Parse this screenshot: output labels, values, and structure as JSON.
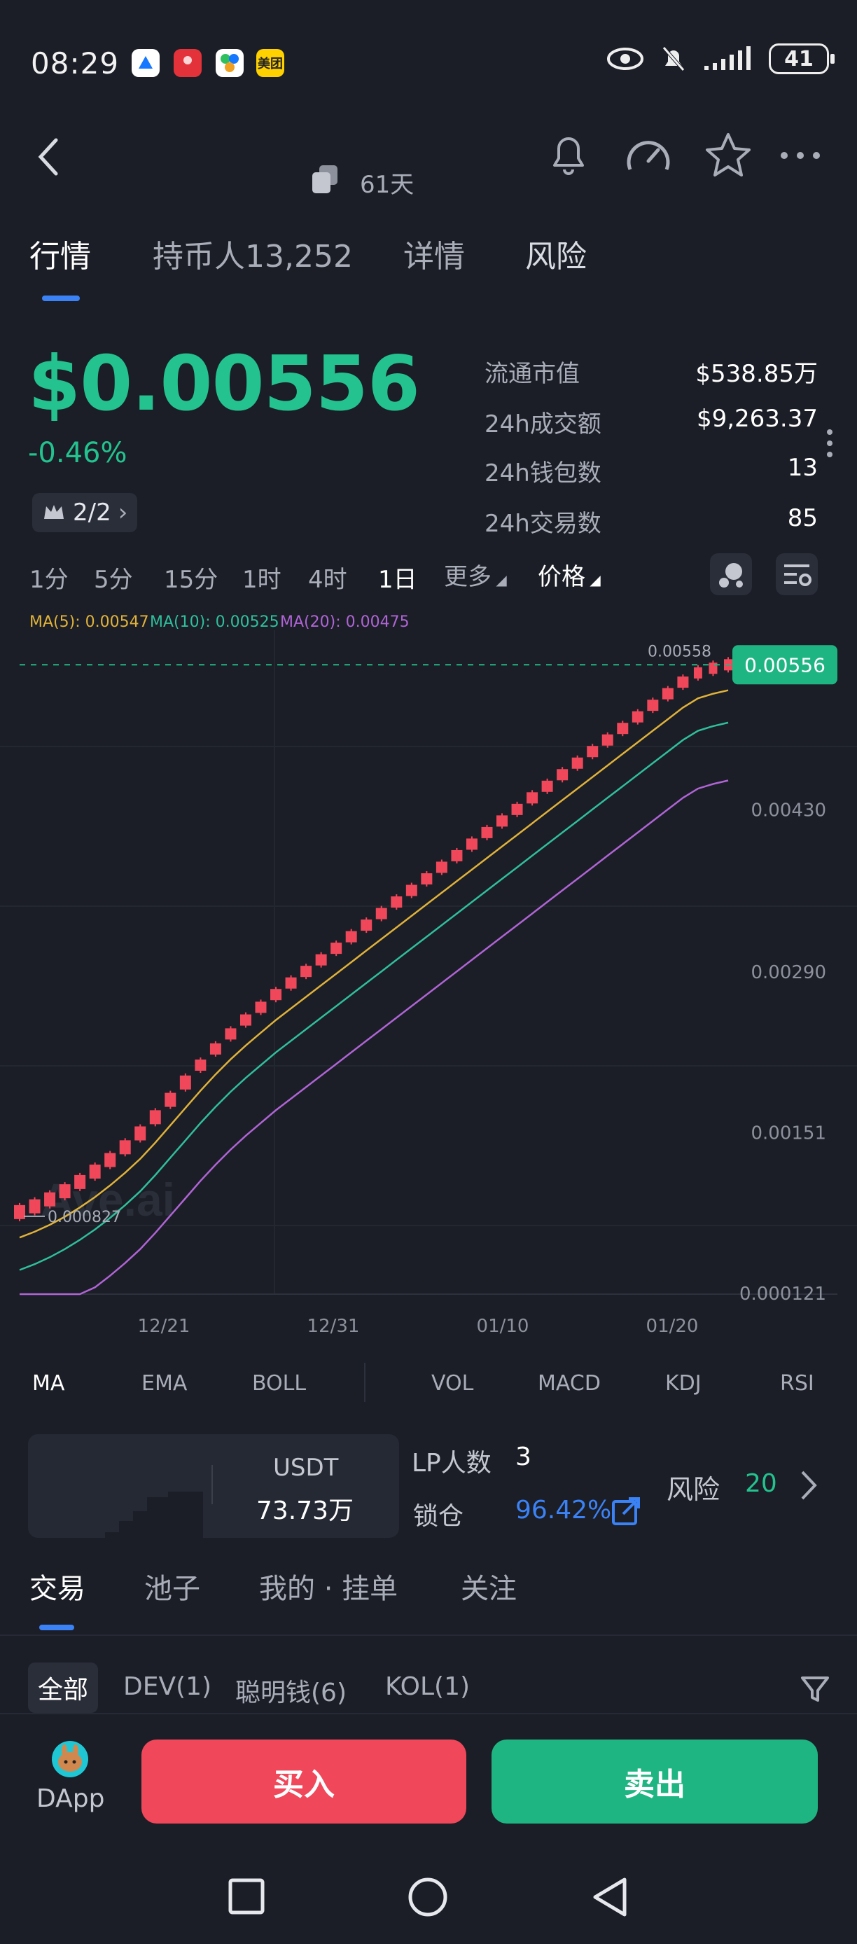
{
  "status_bar": {
    "time": "08:29",
    "battery": "41",
    "app_icons": [
      "alipay-icon",
      "huawei-icon",
      "app-icon",
      "meituan-icon"
    ],
    "meituan_label": "美团"
  },
  "header": {
    "age": "61天"
  },
  "tabs": [
    "行情",
    "持币人13,252",
    "详情",
    "风险"
  ],
  "price": {
    "value": "$0.00556",
    "change": "-0.46%",
    "rank": "2/2"
  },
  "stats": [
    {
      "label": "流通市值",
      "value": "$538.85万"
    },
    {
      "label": "24h成交额",
      "value": "$9,263.37"
    },
    {
      "label": "24h钱包数",
      "value": "13"
    },
    {
      "label": "24h交易数",
      "value": "85"
    }
  ],
  "timeframes": [
    "1分",
    "5分",
    "15分",
    "1时",
    "4时",
    "1日"
  ],
  "timeframe_more": "更多",
  "price_toggle": "价格",
  "ma_legend": {
    "ma5": "MA(5): 0.00547",
    "ma10": "MA(10): 0.00525",
    "ma20": "MA(20): 0.00475"
  },
  "chart_data": {
    "type": "candlestick",
    "x_ticks": [
      "12/21",
      "12/31",
      "01/10",
      "01/20"
    ],
    "y_ticks": [
      "0.00430",
      "0.00290",
      "0.00151",
      "0.000121"
    ],
    "ylim": [
      0.000121,
      0.00558
    ],
    "current_price_tag": "0.00556",
    "high_label": "0.00558",
    "low_label": "0.000827",
    "watermark": "Ave.ai",
    "candles": [
      0.00083,
      0.00088,
      0.00094,
      0.00101,
      0.00109,
      0.00118,
      0.00128,
      0.00139,
      0.00151,
      0.00165,
      0.0018,
      0.00195,
      0.0021,
      0.00224,
      0.00237,
      0.00249,
      0.0026,
      0.00271,
      0.00281,
      0.00291,
      0.00301,
      0.00311,
      0.00321,
      0.00331,
      0.00341,
      0.00351,
      0.00361,
      0.00371,
      0.00381,
      0.00391,
      0.00401,
      0.00411,
      0.00421,
      0.00431,
      0.00441,
      0.00451,
      0.00461,
      0.00471,
      0.00481,
      0.00491,
      0.00501,
      0.00511,
      0.00521,
      0.00531,
      0.00541,
      0.00549,
      0.00553,
      0.00556
    ],
    "candle_color": "#f0475a",
    "ma5_color": "#e0b23a",
    "ma10_color": "#2fbf9c",
    "ma20_color": "#b064d6",
    "ma5_offset": 0.00022,
    "ma10_offset": 0.0005,
    "ma20_offset": 0.001
  },
  "indicators": [
    "MA",
    "EMA",
    "BOLL",
    "VOL",
    "MACD",
    "KDJ",
    "RSI"
  ],
  "liquidity": {
    "token": "USDT",
    "amount": "73.73万",
    "lp_label": "LP人数",
    "lp_count": "3",
    "lock_label": "锁仓",
    "lock_value": "96.42%",
    "risk_label": "风险",
    "risk_value": "20"
  },
  "bottom_tabs": [
    "交易",
    "池子",
    "我的 · 挂单",
    "关注"
  ],
  "filters": [
    "全部",
    "DEV(1)",
    "聪明钱(6)",
    "KOL(1)"
  ],
  "actions": {
    "dapp": "DApp",
    "buy": "买入",
    "sell": "卖出"
  },
  "colors": {
    "green": "#23c28e",
    "red": "#f0475a",
    "blue": "#3b82f6",
    "background": "#1b1e26"
  }
}
